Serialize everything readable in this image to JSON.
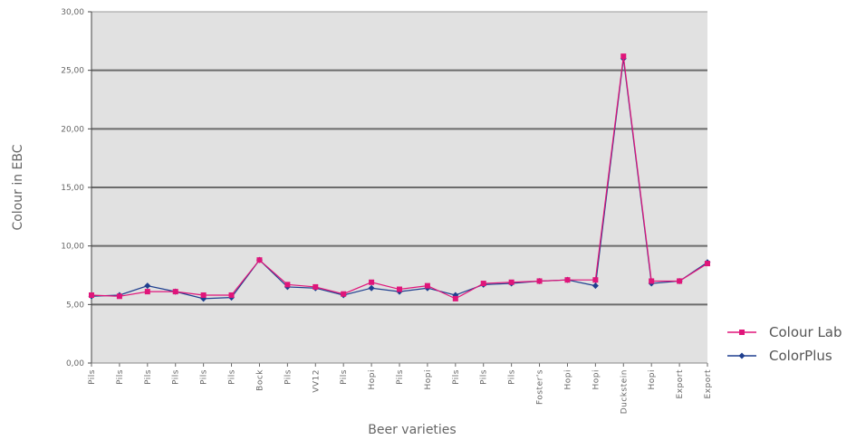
{
  "chart_data": {
    "type": "line",
    "title": "",
    "xlabel": "Beer varieties",
    "ylabel": "Colour in EBC",
    "ylim": [
      0,
      30
    ],
    "yticks": [
      "0,00",
      "5,00",
      "10,00",
      "15,00",
      "20,00",
      "25,00",
      "30,00"
    ],
    "grid": "horizontal",
    "legend_position": "right",
    "categories": [
      "Pils",
      "Pils",
      "Pils",
      "Pils",
      "Pils",
      "Pils",
      "Bock",
      "Pils",
      "VV12",
      "Pils",
      "Hopi",
      "Pils",
      "Hopi",
      "Pils",
      "Pils",
      "Pils",
      "Foster's",
      "Hopi",
      "Hopi",
      "Duckstein",
      "Hopi",
      "Export",
      "Export"
    ],
    "series": [
      {
        "name": "Colour Lab",
        "color": "#e0157a",
        "marker": "square",
        "values": [
          5.8,
          5.7,
          6.1,
          6.1,
          5.8,
          5.8,
          8.8,
          6.7,
          6.5,
          5.9,
          6.9,
          6.3,
          6.6,
          5.5,
          6.8,
          6.9,
          7.0,
          7.1,
          7.1,
          26.2,
          7.0,
          7.0,
          8.5
        ]
      },
      {
        "name": "ColorPlus",
        "color": "#1f3f8f",
        "marker": "diamond",
        "values": [
          5.7,
          5.8,
          6.6,
          6.1,
          5.5,
          5.6,
          8.8,
          6.5,
          6.4,
          5.8,
          6.4,
          6.1,
          6.4,
          5.8,
          6.7,
          6.8,
          7.0,
          7.1,
          6.6,
          26.0,
          6.8,
          7.0,
          8.6
        ]
      }
    ]
  }
}
